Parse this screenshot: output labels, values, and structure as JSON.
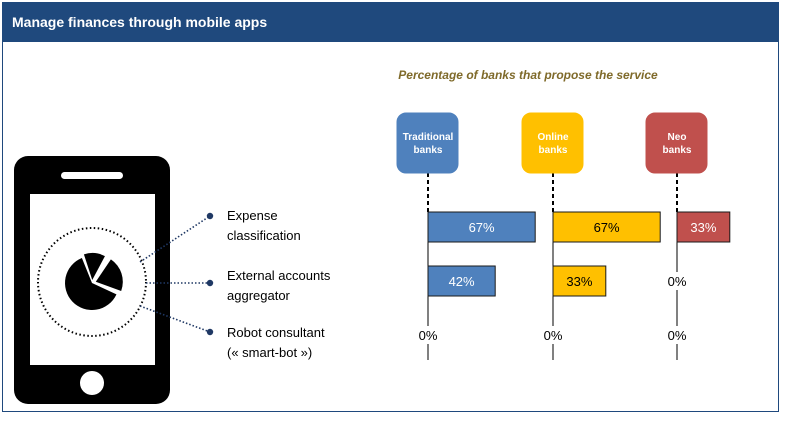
{
  "header": {
    "title": "Manage finances through mobile apps"
  },
  "features": [
    "Expense classification",
    "External accounts aggregator",
    "Robot consultant (« smart-bot »)"
  ],
  "feature_lines": [
    [
      "Expense",
      "classification"
    ],
    [
      "External accounts",
      "aggregator"
    ],
    [
      "Robot consultant",
      "(« smart-bot »)"
    ]
  ],
  "chart_data": {
    "type": "bar",
    "title": "Percentage of banks that propose the service",
    "categories": [
      "Expense classification",
      "External accounts aggregator",
      "Robot consultant (« smart-bot »)"
    ],
    "series": [
      {
        "name": "Traditional banks",
        "name_lines": [
          "Traditional",
          "banks"
        ],
        "color": "#4f81bd",
        "text_color": "#ffffff",
        "values": [
          67,
          42,
          0
        ],
        "labels": [
          "67%",
          "42%",
          "0%"
        ]
      },
      {
        "name": "Online banks",
        "name_lines": [
          "Online",
          "banks"
        ],
        "color": "#ffc000",
        "text_color": "#000000",
        "values": [
          67,
          33,
          0
        ],
        "labels": [
          "67%",
          "33%",
          "0%"
        ]
      },
      {
        "name": "Neo banks",
        "name_lines": [
          "Neo",
          "banks"
        ],
        "color": "#c0504d",
        "text_color": "#ffffff",
        "values": [
          33,
          0,
          0
        ],
        "labels": [
          "33%",
          "0%",
          "0%"
        ]
      }
    ],
    "xlim": [
      0,
      100
    ],
    "unit": "%"
  }
}
